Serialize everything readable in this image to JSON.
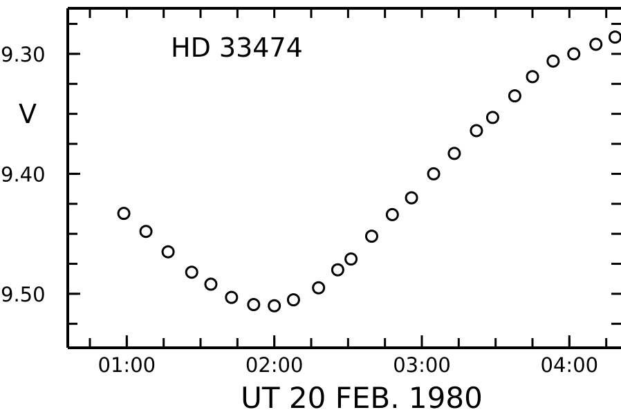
{
  "chart_data": {
    "type": "scatter",
    "title": "HD 33474",
    "xlabel": "UT 20 FEB. 1980",
    "ylabel": "V",
    "x_unit": "hours UT",
    "xlim": [
      0.6,
      4.35
    ],
    "ylim": [
      9.545,
      9.262
    ],
    "y_inverted": true,
    "marker": "open-circle",
    "x_ticks": [
      {
        "value": 1,
        "label": "01:00"
      },
      {
        "value": 2,
        "label": "02:00"
      },
      {
        "value": 3,
        "label": "03:00"
      },
      {
        "value": 4,
        "label": "04:00"
      }
    ],
    "y_ticks": [
      {
        "value": 9.3,
        "label": "9.30"
      },
      {
        "value": 9.4,
        "label": "9.40"
      },
      {
        "value": 9.5,
        "label": "9.50"
      }
    ],
    "x": [
      0.98,
      1.13,
      1.28,
      1.44,
      1.57,
      1.71,
      1.86,
      2.0,
      2.13,
      2.3,
      2.43,
      2.52,
      2.66,
      2.8,
      2.93,
      3.08,
      3.22,
      3.37,
      3.48,
      3.63,
      3.75,
      3.89,
      4.03,
      4.18,
      4.31
    ],
    "y": [
      9.433,
      9.448,
      9.465,
      9.482,
      9.492,
      9.503,
      9.509,
      9.51,
      9.505,
      9.495,
      9.48,
      9.471,
      9.452,
      9.434,
      9.42,
      9.4,
      9.383,
      9.364,
      9.353,
      9.335,
      9.319,
      9.306,
      9.3,
      9.292,
      9.286
    ]
  }
}
